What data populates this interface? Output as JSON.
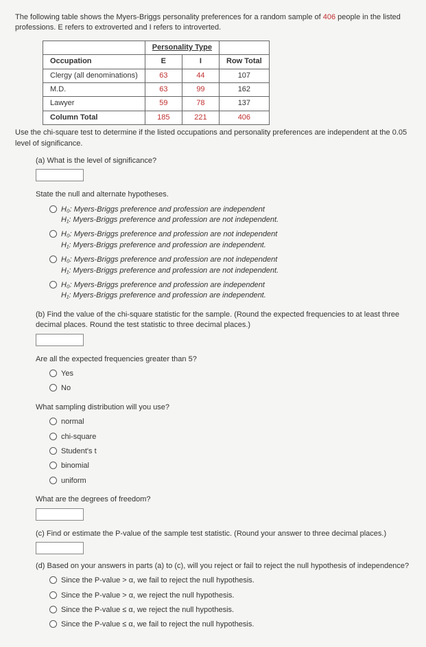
{
  "intro": {
    "line1_a": "The following table shows the Myers-Briggs personality preferences for a random sample of ",
    "sample_n": "406",
    "line1_b": " people in the listed professions. E refers to extroverted and I refers to introverted."
  },
  "table": {
    "pt_header": "Personality Type",
    "col_e": "E",
    "col_i": "I",
    "row_total": "Row Total",
    "occ_header": "Occupation",
    "rows": [
      {
        "label": "Clergy (all denominations)",
        "e": "63",
        "i": "44",
        "t": "107"
      },
      {
        "label": "M.D.",
        "e": "63",
        "i": "99",
        "t": "162"
      },
      {
        "label": "Lawyer",
        "e": "59",
        "i": "78",
        "t": "137"
      }
    ],
    "col_total_label": "Column Total",
    "col_e_total": "185",
    "col_i_total": "221",
    "grand_total": "406"
  },
  "chi_intro": "Use the chi-square test to determine if the listed occupations and personality preferences are independent at the 0.05 level of significance.",
  "part_a": {
    "q": "(a) What is the level of significance?"
  },
  "hypotheses": {
    "stem": "State the null and alternate hypotheses.",
    "opts": [
      {
        "h0": "H₀: Myers-Briggs preference and profession are independent",
        "h1": "H₁: Myers-Briggs preference and profession are not independent."
      },
      {
        "h0": "H₀: Myers-Briggs preference and profession are not independent",
        "h1": "H₁: Myers-Briggs preference and profession are independent."
      },
      {
        "h0": "H₀: Myers-Briggs preference and profession are not independent",
        "h1": "H₁: Myers-Briggs preference and profession are not independent."
      },
      {
        "h0": "H₀: Myers-Briggs preference and profession are independent",
        "h1": "H₁: Myers-Briggs preference and profession are independent."
      }
    ]
  },
  "part_b": {
    "q": "(b) Find the value of the chi-square statistic for the sample. (Round the expected frequencies to at least three decimal places. Round the test statistic to three decimal places.)"
  },
  "exp_freq": {
    "stem": "Are all the expected frequencies greater than 5?",
    "yes": "Yes",
    "no": "No"
  },
  "dist": {
    "stem": "What sampling distribution will you use?",
    "opts": [
      "normal",
      "chi-square",
      "Student's t",
      "binomial",
      "uniform"
    ]
  },
  "df": {
    "stem": "What are the degrees of freedom?"
  },
  "part_c": {
    "q": "(c) Find or estimate the P-value of the sample test statistic. (Round your answer to three decimal places.)"
  },
  "part_d": {
    "q": "(d) Based on your answers in parts (a) to (c), will you reject or fail to reject the null hypothesis of independence?",
    "opts": [
      "Since the P-value > α, we fail to reject the null hypothesis.",
      "Since the P-value > α, we reject the null hypothesis.",
      "Since the P-value ≤ α, we reject the null hypothesis.",
      "Since the P-value ≤ α, we fail to reject the null hypothesis."
    ]
  }
}
